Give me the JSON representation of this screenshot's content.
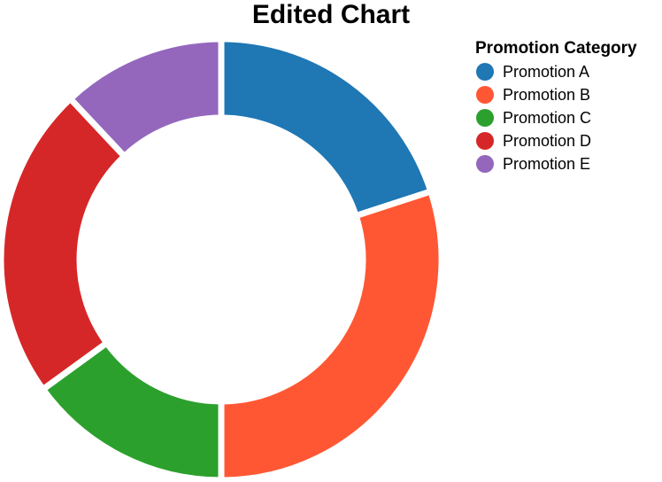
{
  "chart_data": {
    "type": "pie",
    "variant": "donut",
    "title": "Edited Chart",
    "legend_title": "Promotion Category",
    "legend_position": "right",
    "categories": [
      "Promotion A",
      "Promotion B",
      "Promotion C",
      "Promotion D",
      "Promotion E"
    ],
    "values": [
      20,
      30,
      15,
      23,
      12
    ],
    "colors": [
      "#1f77b4",
      "#ff5733",
      "#2ca02c",
      "#d62728",
      "#9467bd"
    ]
  }
}
